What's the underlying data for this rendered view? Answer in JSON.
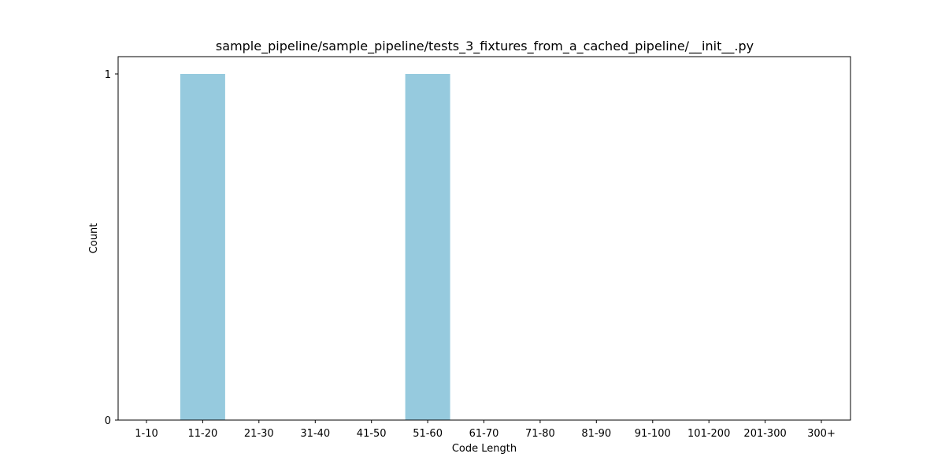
{
  "chart_data": {
    "type": "bar",
    "title": "sample_pipeline/sample_pipeline/tests_3_fixtures_from_a_cached_pipeline/__init__.py",
    "xlabel": "Code Length",
    "ylabel": "Count",
    "categories": [
      "1-10",
      "11-20",
      "21-30",
      "31-40",
      "41-50",
      "51-60",
      "61-70",
      "71-80",
      "81-90",
      "91-100",
      "101-200",
      "201-300",
      "300+"
    ],
    "values": [
      0,
      1,
      0,
      0,
      0,
      1,
      0,
      0,
      0,
      0,
      0,
      0,
      0
    ],
    "ylim": [
      0,
      1
    ],
    "yticks": [
      0,
      1
    ],
    "grid": false,
    "bar_color": "#96cade"
  }
}
